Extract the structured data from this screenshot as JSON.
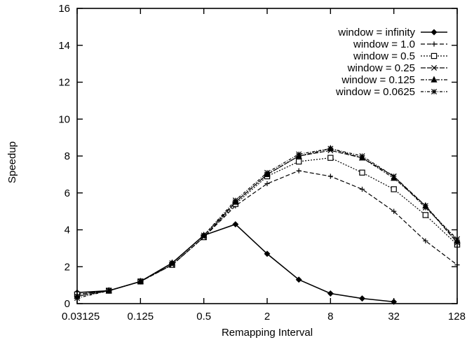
{
  "chart_data": {
    "type": "line",
    "xlabel": "Remapping Interval",
    "ylabel": "Speedup",
    "xscale": "log2",
    "xlim": [
      0.03125,
      128
    ],
    "ylim": [
      0,
      16
    ],
    "x_ticks": [
      "0.03125",
      "0.125",
      "0.5",
      "2",
      "8",
      "32",
      "128"
    ],
    "x_tick_values": [
      0.03125,
      0.125,
      0.5,
      2,
      8,
      32,
      128
    ],
    "y_ticks": [
      "0",
      "2",
      "4",
      "6",
      "8",
      "10",
      "12",
      "14",
      "16"
    ],
    "y_tick_values": [
      0,
      2,
      4,
      6,
      8,
      10,
      12,
      14,
      16
    ],
    "grid": false,
    "legend_position": "top-right",
    "x": [
      0.03125,
      0.0625,
      0.125,
      0.25,
      0.5,
      1,
      2,
      4,
      8,
      16,
      32,
      64,
      128
    ],
    "series": [
      {
        "name": "window = infinity",
        "marker": "diamond",
        "dash": "",
        "values": [
          0.6,
          0.7,
          1.2,
          2.2,
          3.7,
          4.3,
          2.7,
          1.3,
          0.55,
          0.28,
          0.1,
          null,
          null
        ]
      },
      {
        "name": "window = 1.0",
        "marker": "plus",
        "dash": "6,3",
        "values": [
          0.5,
          0.7,
          1.2,
          2.1,
          3.6,
          5.3,
          6.5,
          7.2,
          6.9,
          6.2,
          5.0,
          3.4,
          2.1
        ]
      },
      {
        "name": "window = 0.5",
        "marker": "square",
        "dash": "2,2",
        "values": [
          0.5,
          0.7,
          1.2,
          2.1,
          3.6,
          5.4,
          6.9,
          7.7,
          7.9,
          7.1,
          6.2,
          4.8,
          3.2
        ]
      },
      {
        "name": "window = 0.25",
        "marker": "x",
        "dash": "7,2",
        "values": [
          0.4,
          0.7,
          1.2,
          2.1,
          3.6,
          5.5,
          7.0,
          8.0,
          8.3,
          7.9,
          6.9,
          5.3,
          3.3
        ]
      },
      {
        "name": "window = 0.125",
        "marker": "triangle",
        "dash": "5,2,2,2",
        "values": [
          0.4,
          0.7,
          1.2,
          2.2,
          3.7,
          5.5,
          7.0,
          8.0,
          8.4,
          7.9,
          6.8,
          5.3,
          3.4
        ]
      },
      {
        "name": "window = 0.0625",
        "marker": "star",
        "dash": "4,2,1,2",
        "values": [
          0.3,
          0.7,
          1.2,
          2.2,
          3.7,
          5.6,
          7.1,
          8.1,
          8.4,
          8.0,
          6.9,
          5.2,
          3.5
        ]
      }
    ]
  }
}
